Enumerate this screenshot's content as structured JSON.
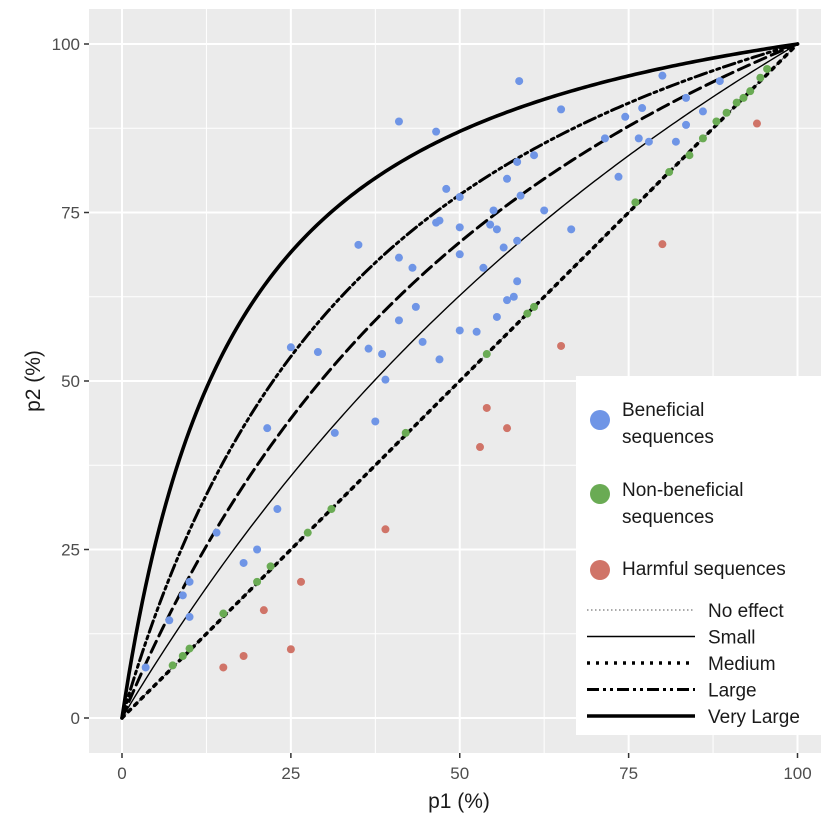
{
  "chart_data": {
    "type": "scatter",
    "xlabel": "p1 (%)",
    "ylabel": "p2 (%)",
    "xlim": [
      -5,
      103
    ],
    "ylim": [
      -5,
      105
    ],
    "x_ticks": [
      "0",
      "25",
      "50",
      "75",
      "100"
    ],
    "y_ticks": [
      "0",
      "25",
      "50",
      "75",
      "100"
    ],
    "grid": true,
    "legend_position": "right",
    "colors": {
      "panel": "#ebebeb",
      "grid": "#ffffff",
      "beneficial": "#6f95e6",
      "non_beneficial": "#6aab54",
      "harmful": "#d07468",
      "line": "#000000",
      "no_effect_line": "#555555"
    },
    "point_series": [
      {
        "name": "Beneficial sequences",
        "legend_label": [
          "Beneficial",
          "sequences"
        ],
        "color": "#6f95e6",
        "points": [
          [
            3.5,
            7.5
          ],
          [
            7,
            14.5
          ],
          [
            9,
            18.2
          ],
          [
            10,
            20.2
          ],
          [
            10,
            15
          ],
          [
            14,
            27.5
          ],
          [
            18,
            23
          ],
          [
            20,
            25
          ],
          [
            21.5,
            43
          ],
          [
            23,
            31
          ],
          [
            25,
            55
          ],
          [
            29,
            54.3
          ],
          [
            31.5,
            42.3
          ],
          [
            35,
            70.2
          ],
          [
            36.5,
            54.8
          ],
          [
            37.5,
            44
          ],
          [
            38.5,
            54
          ],
          [
            39,
            50.2
          ],
          [
            41,
            68.3
          ],
          [
            41,
            59
          ],
          [
            41,
            88.5
          ],
          [
            43,
            66.8
          ],
          [
            43.5,
            61
          ],
          [
            44.5,
            55.8
          ],
          [
            46.5,
            87
          ],
          [
            46.5,
            73.5
          ],
          [
            47,
            73.8
          ],
          [
            47,
            53.2
          ],
          [
            48,
            78.5
          ],
          [
            50,
            77.3
          ],
          [
            50,
            72.8
          ],
          [
            50,
            68.8
          ],
          [
            50,
            57.5
          ],
          [
            52.5,
            57.3
          ],
          [
            53.5,
            66.8
          ],
          [
            54.5,
            73.2
          ],
          [
            55,
            75.3
          ],
          [
            55.5,
            59.5
          ],
          [
            55.5,
            72.5
          ],
          [
            56.5,
            69.8
          ],
          [
            57,
            80
          ],
          [
            57,
            62
          ],
          [
            58,
            62.5
          ],
          [
            58.5,
            82.5
          ],
          [
            58.5,
            70.8
          ],
          [
            58.5,
            64.8
          ],
          [
            59,
            77.5
          ],
          [
            58.8,
            94.5
          ],
          [
            61,
            83.5
          ],
          [
            62.5,
            75.3
          ],
          [
            65,
            90.3
          ],
          [
            66.5,
            72.5
          ],
          [
            71.5,
            86
          ],
          [
            73.5,
            80.3
          ],
          [
            74.5,
            89.2
          ],
          [
            76.5,
            86
          ],
          [
            77,
            90.5
          ],
          [
            78,
            85.5
          ],
          [
            80,
            95.3
          ],
          [
            82,
            85.5
          ],
          [
            83.5,
            92
          ],
          [
            83.5,
            88
          ],
          [
            86,
            90
          ],
          [
            88.5,
            94.5
          ]
        ]
      },
      {
        "name": "Non-beneficial sequences",
        "legend_label": [
          "Non-beneficial",
          "sequences"
        ],
        "color": "#6aab54",
        "points": [
          [
            7.5,
            7.8
          ],
          [
            9,
            9.2
          ],
          [
            10,
            10.3
          ],
          [
            15,
            15.5
          ],
          [
            20,
            20.2
          ],
          [
            22,
            22.5
          ],
          [
            27.5,
            27.5
          ],
          [
            31,
            31
          ],
          [
            42,
            42.3
          ],
          [
            54,
            54
          ],
          [
            60,
            60
          ],
          [
            61,
            61
          ],
          [
            76,
            76.5
          ],
          [
            81,
            81
          ],
          [
            84,
            83.5
          ],
          [
            86,
            86
          ],
          [
            88,
            88.5
          ],
          [
            89.5,
            89.8
          ],
          [
            91,
            91.3
          ],
          [
            92,
            92
          ],
          [
            93,
            93
          ],
          [
            94.5,
            95
          ],
          [
            95.5,
            96.3
          ]
        ]
      },
      {
        "name": "Harmful sequences",
        "legend_label": [
          "Harmful sequences"
        ],
        "color": "#d07468",
        "points": [
          [
            15,
            7.5
          ],
          [
            18,
            9.2
          ],
          [
            21,
            16
          ],
          [
            25,
            10.2
          ],
          [
            26.5,
            20.2
          ],
          [
            39,
            28
          ],
          [
            53,
            40.2
          ],
          [
            54,
            46
          ],
          [
            57,
            43
          ],
          [
            65,
            55.2
          ],
          [
            80,
            70.3
          ],
          [
            94,
            88.2
          ]
        ]
      }
    ],
    "curves": [
      {
        "name": "No effect",
        "style": "dotted-thin",
        "or": 1
      },
      {
        "name": "Small",
        "style": "solid-thin",
        "or": 1.68
      },
      {
        "name": "Medium",
        "style": "dotted-heavy",
        "or": 1
      },
      {
        "name": "Large",
        "style": "dashdot",
        "or": 3.47
      },
      {
        "name": "Very Large",
        "style": "solid-heavy",
        "or": 6.71
      }
    ],
    "extra_curve_or": 2.4
  }
}
